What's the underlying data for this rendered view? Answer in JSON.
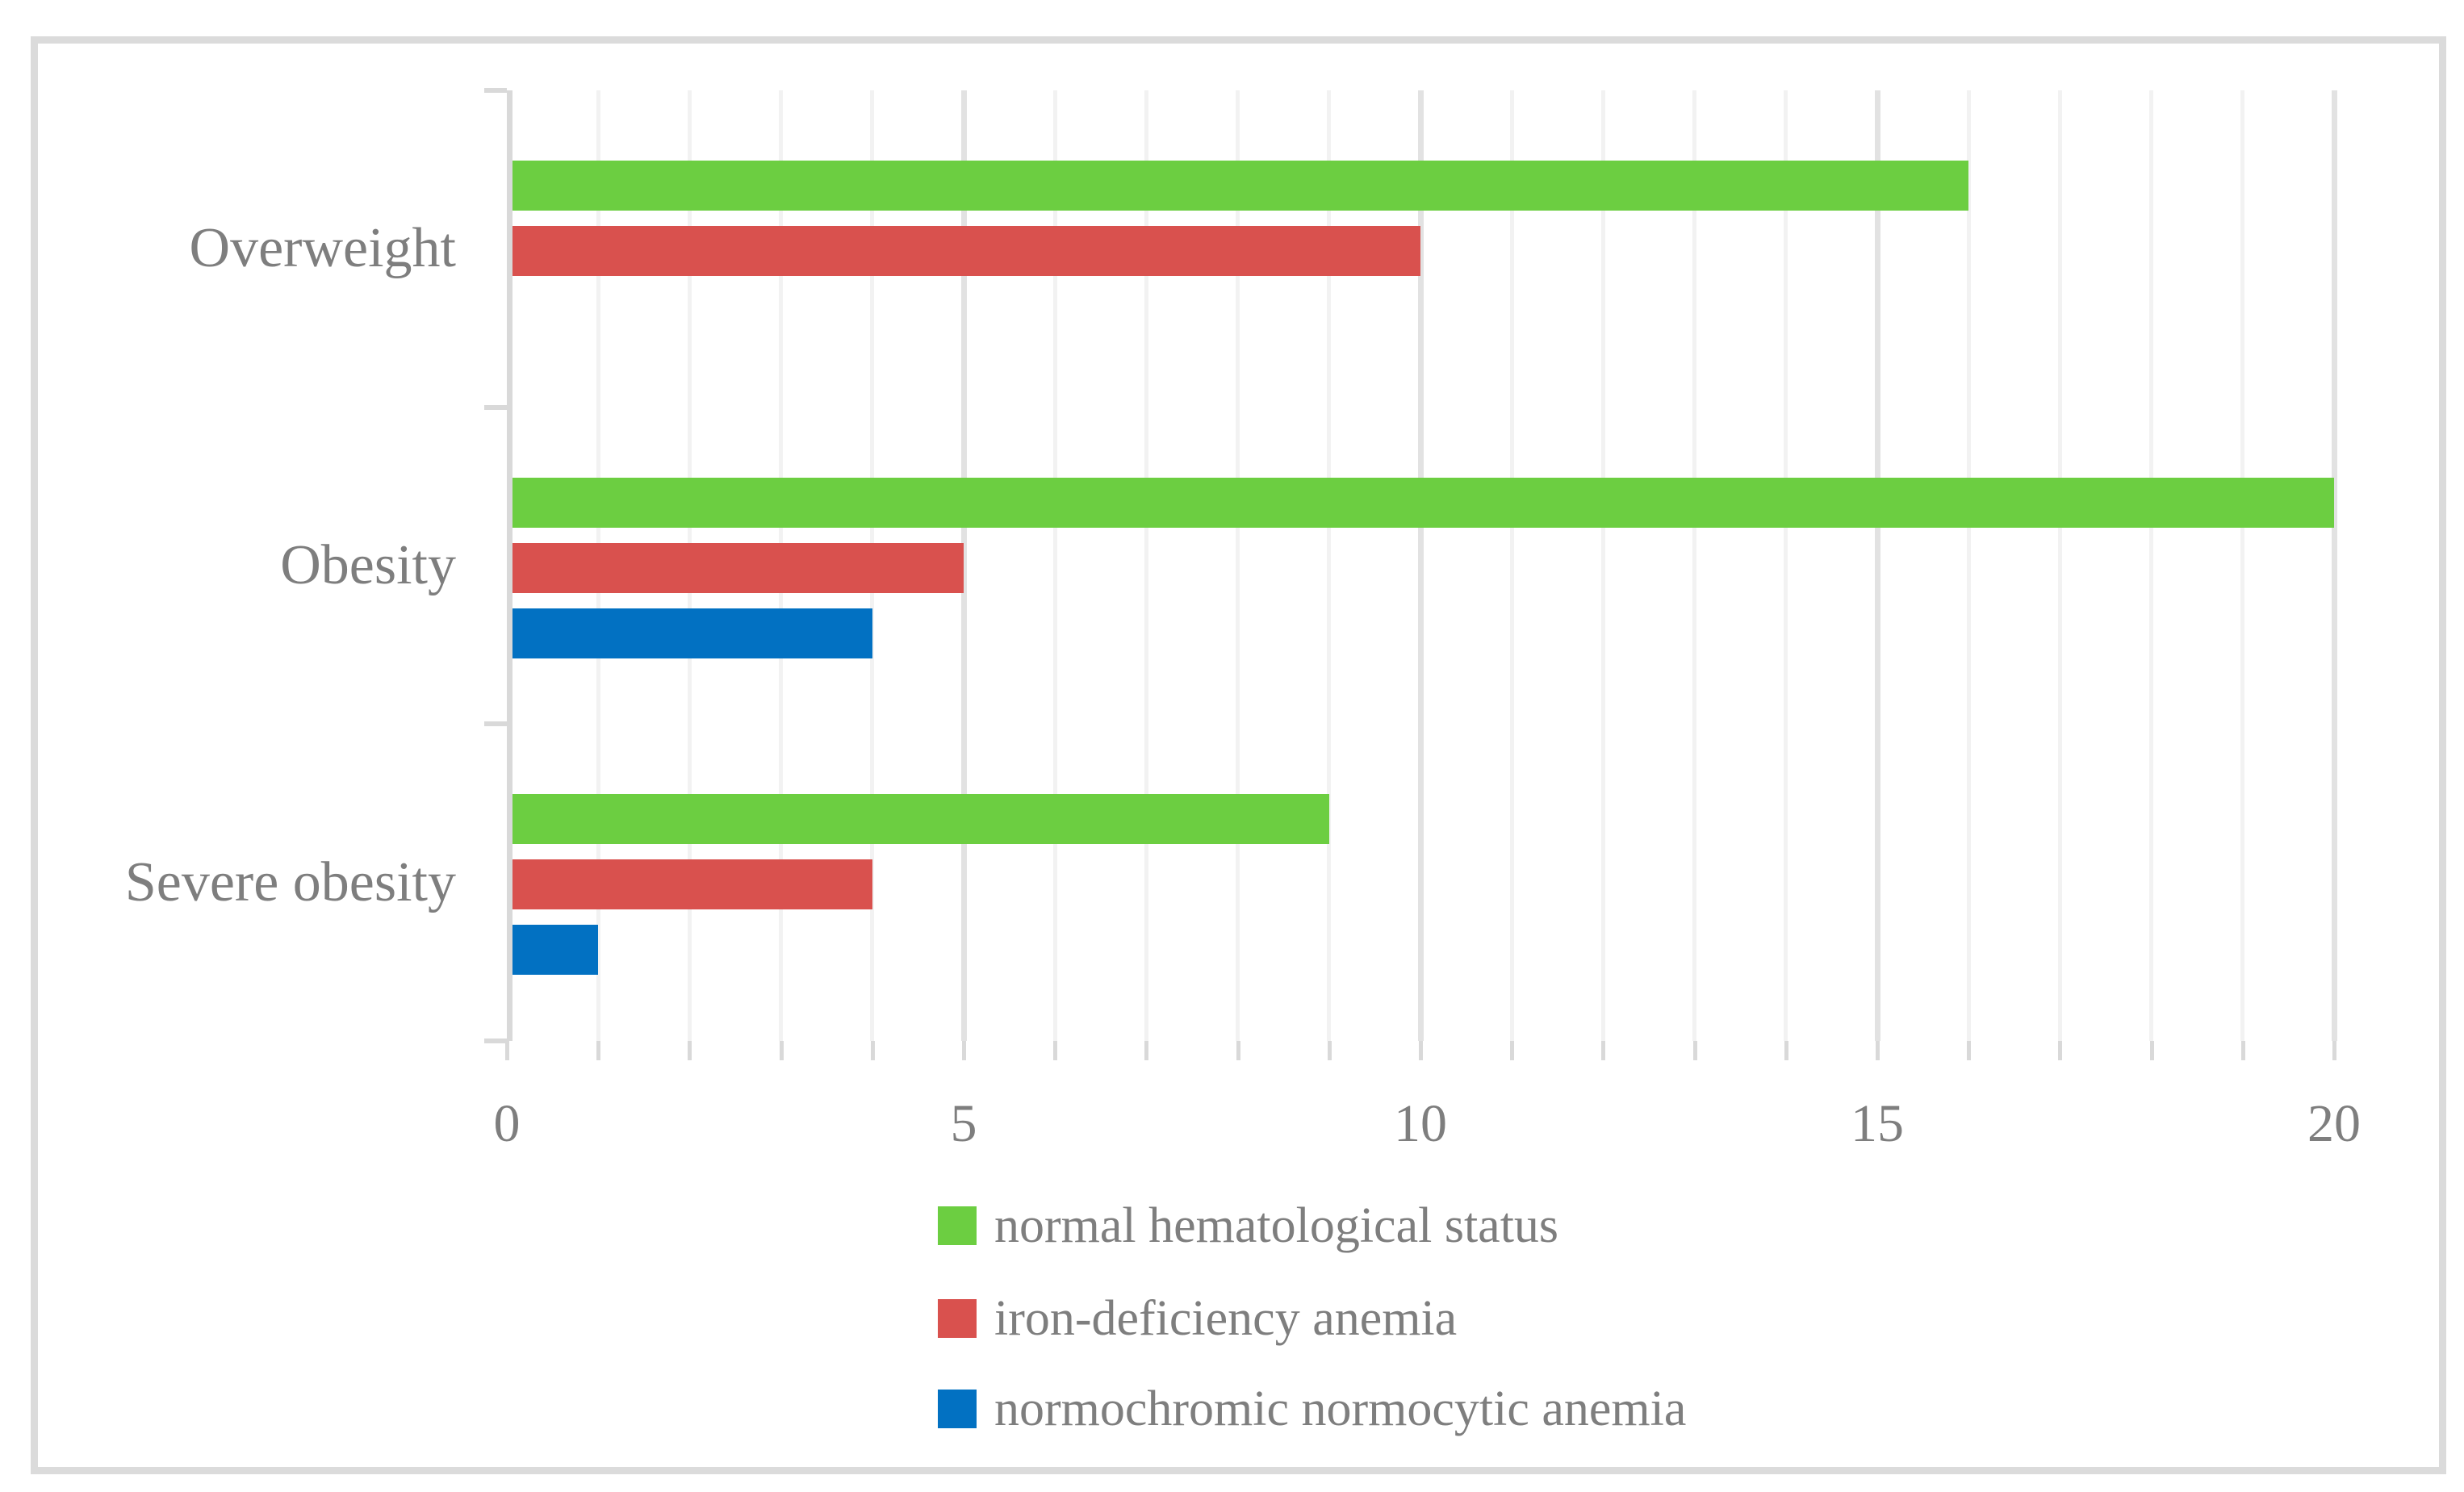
{
  "chart_data": {
    "type": "bar",
    "orientation": "horizontal",
    "title": "",
    "xlabel": "",
    "ylabel": "",
    "categories": [
      "Overweight",
      "Obesity",
      "Severe obesity"
    ],
    "series": [
      {
        "name": "normal hematological status",
        "color": "#6cce41",
        "values": [
          16,
          20,
          9
        ]
      },
      {
        "name": "iron-deficiency anemia",
        "color": "#d9514e",
        "values": [
          10,
          5,
          4
        ]
      },
      {
        "name": "normochromic normocytic anemia",
        "color": "#0271c2",
        "values": [
          0,
          4,
          1
        ]
      }
    ],
    "xlim": [
      0,
      20
    ],
    "x_ticks": [
      "0",
      "5",
      "10",
      "15",
      "20"
    ],
    "x_tick_values": [
      0,
      5,
      10,
      15,
      20
    ],
    "minor_grid_step": 1,
    "major_grid_step": 5,
    "grid": true,
    "legend_position": "bottom-center"
  },
  "styles": {
    "frame_color": "#dbdbdb",
    "axis_color": "#d9d9d9",
    "grid_minor_color": "#f2f2f2",
    "grid_major_color": "#e2e2e2",
    "text_color": "#7e7e7e",
    "background": "#ffffff"
  }
}
